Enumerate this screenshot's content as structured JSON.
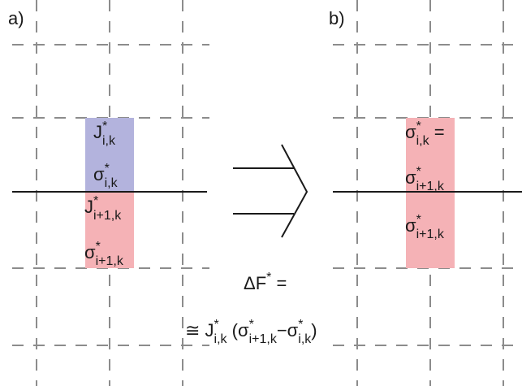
{
  "panel_a": {
    "label": "a)",
    "cells": [
      [
        {
          "text": "J",
          "pos": "base"
        },
        {
          "text": "*",
          "pos": "sup"
        },
        {
          "text": "i,k",
          "pos": "sub"
        }
      ],
      [
        {
          "text": "σ",
          "pos": "base"
        },
        {
          "text": "*",
          "pos": "sup"
        },
        {
          "text": "i,k",
          "pos": "sub"
        }
      ],
      [
        {
          "text": "J",
          "pos": "base"
        },
        {
          "text": "*",
          "pos": "sup"
        },
        {
          "text": "i+1,k",
          "pos": "sub"
        }
      ],
      [
        {
          "text": "σ",
          "pos": "base"
        },
        {
          "text": "*",
          "pos": "sup"
        },
        {
          "text": "i+1,k",
          "pos": "sub"
        }
      ]
    ]
  },
  "panel_b": {
    "label": "b)",
    "cells": [
      [
        {
          "text": "σ",
          "pos": "base"
        },
        {
          "text": "*",
          "pos": "sup"
        },
        {
          "text": "i,k",
          "pos": "sub"
        },
        {
          "text": " =",
          "pos": "base"
        }
      ],
      [
        {
          "text": "σ",
          "pos": "base"
        },
        {
          "text": "*",
          "pos": "sup"
        },
        {
          "text": "i+1,k",
          "pos": "sub"
        }
      ],
      [
        {
          "text": "σ",
          "pos": "base"
        },
        {
          "text": "*",
          "pos": "sup"
        },
        {
          "text": "i+1,k",
          "pos": "sub"
        }
      ]
    ]
  },
  "equation": {
    "lhs": [
      {
        "text": "ΔF",
        "pos": "base"
      },
      {
        "text": "*",
        "pos": "sup"
      },
      {
        "text": " =",
        "pos": "base"
      }
    ],
    "rhs": [
      {
        "text": "≅ J",
        "pos": "base"
      },
      {
        "text": "*",
        "pos": "sup"
      },
      {
        "text": "i,k",
        "pos": "sub"
      },
      {
        "text": " (σ",
        "pos": "base"
      },
      {
        "text": "*",
        "pos": "sup"
      },
      {
        "text": "i+1,k",
        "pos": "sub"
      },
      {
        "text": "−σ",
        "pos": "base"
      },
      {
        "text": "*",
        "pos": "sup"
      },
      {
        "text": "i,k",
        "pos": "sub"
      },
      {
        "text": ")",
        "pos": "base"
      }
    ]
  }
}
